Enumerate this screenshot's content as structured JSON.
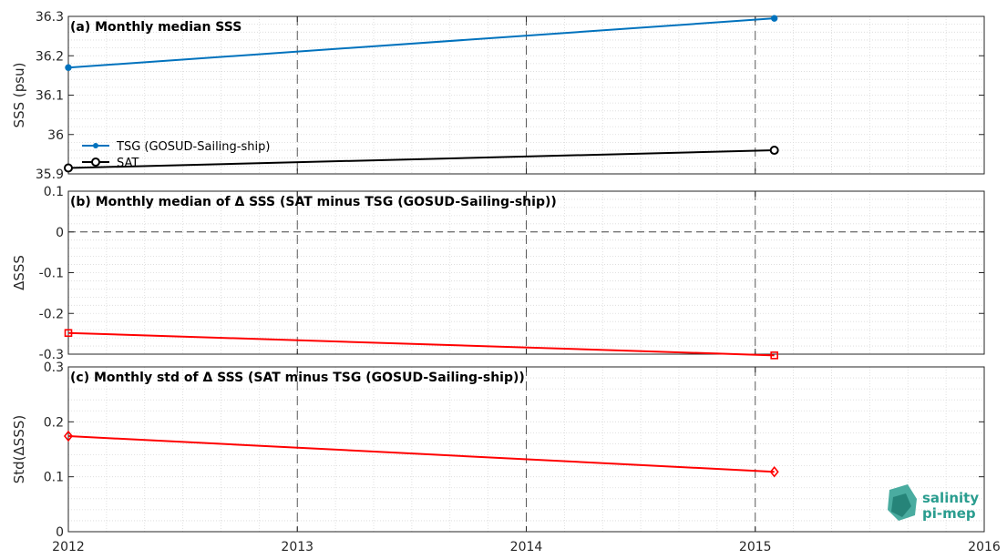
{
  "chart_data": [
    {
      "type": "line",
      "title": "(a) Monthly median SSS",
      "ylabel": "SSS (psu)",
      "xlim": [
        2012,
        2016
      ],
      "ylim": [
        35.9,
        36.3
      ],
      "yticks": [
        "35.9",
        "36",
        "36.1",
        "36.2",
        "36.3"
      ],
      "grid": true,
      "legend_position": "bottom-left",
      "series": [
        {
          "name": "TSG (GOSUD-Sailing-ship)",
          "x": [
            "2012-01",
            "2015-02"
          ],
          "values": [
            36.17,
            36.295
          ],
          "color": "#0072bd",
          "marker": "dot"
        },
        {
          "name": "SAT",
          "x": [
            "2012-01",
            "2015-02"
          ],
          "values": [
            35.915,
            35.96
          ],
          "color": "#000000",
          "marker": "circle"
        }
      ]
    },
    {
      "type": "line",
      "title": "(b) Monthly median of Δ SSS (SAT minus TSG (GOSUD-Sailing-ship))",
      "ylabel": "ΔSSS",
      "xlim": [
        2012,
        2016
      ],
      "ylim": [
        -0.3,
        0.1
      ],
      "yticks": [
        "-0.3",
        "-0.2",
        "-0.1",
        "0",
        "0.1"
      ],
      "grid": true,
      "series": [
        {
          "x": [
            "2012-01",
            "2015-02"
          ],
          "values": [
            -0.248,
            -0.303
          ],
          "color": "#ff0000",
          "marker": "square"
        }
      ]
    },
    {
      "type": "line",
      "title": "(c) Monthly std of Δ SSS (SAT minus TSG (GOSUD-Sailing-ship))",
      "ylabel": "Std(ΔSSS)",
      "xlim": [
        2012,
        2016
      ],
      "ylim": [
        0,
        0.3
      ],
      "yticks": [
        "0",
        "0.1",
        "0.2",
        "0.3"
      ],
      "xticks": [
        "2012",
        "2013",
        "2014",
        "2015",
        "2016"
      ],
      "grid": true,
      "series": [
        {
          "x": [
            "2012-01",
            "2015-02"
          ],
          "values": [
            0.174,
            0.109
          ],
          "color": "#ff0000",
          "marker": "diamond"
        }
      ]
    }
  ],
  "logo": {
    "line1": "salinity",
    "line2": "pi-mep"
  }
}
